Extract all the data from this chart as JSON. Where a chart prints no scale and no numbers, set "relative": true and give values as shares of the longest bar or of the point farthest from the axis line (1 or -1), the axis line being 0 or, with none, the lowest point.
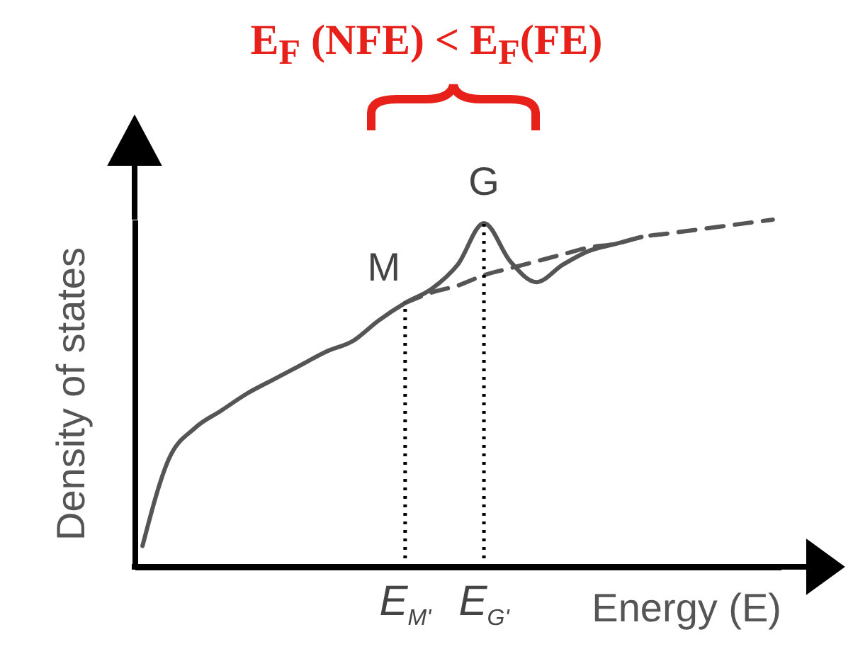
{
  "chart_data": {
    "type": "line",
    "relative": true,
    "title": "E$_{F}$ (NFE) < E$_{F}$(FE)",
    "xlabel": "Energy (E)",
    "ylabel": "Density of states",
    "categories": [
      null,
      null,
      null,
      null,
      null,
      null,
      null,
      null,
      null,
      null,
      "E$_{M'}$",
      null,
      null,
      "E$_{G'}$",
      null,
      null,
      null,
      null,
      null,
      null,
      null,
      null,
      null,
      null,
      null
    ],
    "series": [
      {
        "color": "#555555",
        "line_style": "solid",
        "values": [
          0.06,
          0.31,
          0.4,
          0.45,
          0.5,
          0.54,
          0.58,
          0.62,
          0.65,
          0.71,
          0.76,
          0.8,
          0.87,
          0.99,
          0.88,
          0.82,
          0.87,
          0.91,
          0.93,
          0.95,
          null,
          null,
          null,
          null,
          null
        ]
      },
      {
        "color": "#555555",
        "line_style": "dashed",
        "values": [
          null,
          null,
          null,
          null,
          null,
          null,
          null,
          null,
          null,
          null,
          0.76,
          0.79,
          0.81,
          0.84,
          0.86,
          0.88,
          0.9,
          0.92,
          0.93,
          0.95,
          0.96,
          0.97,
          0.98,
          0.99,
          1.0
        ]
      }
    ],
    "ref_lines": [
      {
        "axis": "x",
        "value": "E$_{M'}$",
        "line_style": "dotted",
        "color": "#000000"
      },
      {
        "axis": "x",
        "value": "E$_{G'}$",
        "line_style": "dotted",
        "color": "#000000"
      }
    ],
    "annotations": [
      {
        "text": "M",
        "x": "E$_{M'}$",
        "y": 0.76
      },
      {
        "text": "G",
        "x": "E$_{G'}$",
        "y": 0.99
      }
    ],
    "grid": false
  }
}
